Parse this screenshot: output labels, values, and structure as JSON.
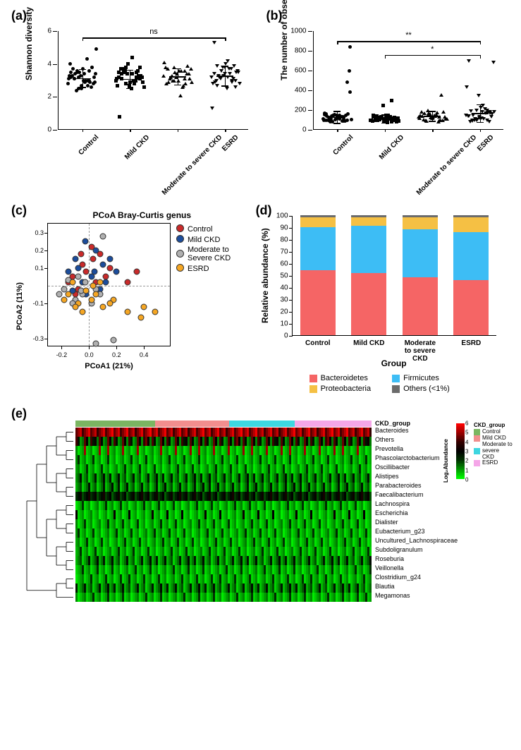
{
  "panel_labels": {
    "a": "(a)",
    "b": "(b)",
    "c": "(c)",
    "d": "(d)",
    "e": "(e)"
  },
  "groups": [
    "Control",
    "Mild CKD",
    "Moderate to severe CKD",
    "ESRD"
  ],
  "shannon": {
    "type": "strip-scatter",
    "ylabel": "Shannon diversity",
    "ylim": [
      0,
      6
    ],
    "ytick_step": 2,
    "sig_label": "ns",
    "sig_bars": [
      {
        "from": 0,
        "to": 3,
        "y": 5.6,
        "label": "ns"
      }
    ],
    "markers": [
      "circle",
      "square",
      "triangle",
      "invtriangle"
    ],
    "means": [
      3.15,
      3.1,
      3.25,
      3.3
    ],
    "sds": [
      0.55,
      0.55,
      0.5,
      0.6
    ],
    "points": [
      [
        2.8,
        3.2,
        3.0,
        3.5,
        2.5,
        3.8,
        3.1,
        2.9,
        3.4,
        3.6,
        2.7,
        4.0,
        3.3,
        2.6,
        3.7,
        3.0,
        3.2,
        2.4,
        4.3,
        3.1,
        3.5,
        2.9,
        3.3,
        3.7,
        2.8,
        3.4,
        3.0,
        4.9,
        2.5,
        3.6,
        3.2,
        2.7,
        3.8,
        3.1,
        3.4,
        2.9,
        3.5,
        3.0,
        3.3
      ],
      [
        3.0,
        2.8,
        3.5,
        3.2,
        2.6,
        3.8,
        3.1,
        3.4,
        2.9,
        3.6,
        3.0,
        2.7,
        4.0,
        3.3,
        3.7,
        2.5,
        3.2,
        3.5,
        2.8,
        3.1,
        3.4,
        3.6,
        0.8,
        2.9,
        3.3,
        3.7,
        3.0,
        2.6,
        3.8,
        3.2,
        3.5,
        2.7,
        3.1,
        3.4,
        4.4
      ],
      [
        3.3,
        3.0,
        3.6,
        2.8,
        3.4,
        3.9,
        3.1,
        2.1,
        3.7,
        3.0,
        2.7,
        3.8,
        3.2,
        3.4,
        2.9,
        3.6,
        3.1,
        3.3,
        2.6,
        4.1,
        3.5,
        2.8,
        3.7,
        3.0,
        3.4,
        3.2,
        3.6,
        2.9,
        3.8,
        3.1
      ],
      [
        3.2,
        3.6,
        2.9,
        3.4,
        3.8,
        3.0,
        2.7,
        4.2,
        3.5,
        3.1,
        3.7,
        2.8,
        3.3,
        3.9,
        3.0,
        2.5,
        3.6,
        3.2,
        3.4,
        1.3,
        3.8,
        3.1,
        2.9,
        4.0,
        3.5,
        3.3,
        3.7,
        2.8,
        3.6,
        3.0,
        5.3,
        3.4,
        2.6,
        3.9,
        3.2
      ]
    ]
  },
  "otus": {
    "type": "strip-scatter",
    "ylabel": "The number of observed OTUs",
    "ylim": [
      0,
      1000
    ],
    "ytick_step": 200,
    "sig_bars": [
      {
        "from": 0,
        "to": 3,
        "y": 900,
        "label": "**"
      },
      {
        "from": 1,
        "to": 3,
        "y": 760,
        "label": "*"
      }
    ],
    "markers": [
      "circle",
      "square",
      "triangle",
      "invtriangle"
    ],
    "means": [
      130,
      115,
      140,
      170
    ],
    "sds": [
      60,
      40,
      50,
      90
    ],
    "points": [
      [
        110,
        140,
        90,
        160,
        120,
        480,
        100,
        150,
        840,
        80,
        130,
        170,
        105,
        145,
        95,
        125,
        600,
        110,
        135,
        100,
        155,
        90,
        140,
        120,
        160,
        85,
        130,
        105,
        150,
        115,
        95,
        145,
        100,
        125,
        110,
        380,
        140,
        90,
        155
      ],
      [
        100,
        130,
        85,
        150,
        110,
        95,
        140,
        75,
        120,
        105,
        135,
        90,
        250,
        115,
        100,
        145,
        80,
        125,
        110,
        95,
        130,
        105,
        140,
        85,
        120,
        100,
        150,
        90,
        115,
        295,
        135,
        80,
        125,
        105,
        110
      ],
      [
        130,
        160,
        100,
        180,
        120,
        95,
        170,
        140,
        110,
        200,
        85,
        150,
        125,
        355,
        105,
        145,
        130,
        90,
        175,
        115,
        160,
        100,
        140,
        125,
        185,
        95,
        155,
        110,
        170,
        130
      ],
      [
        150,
        200,
        100,
        700,
        130,
        180,
        90,
        250,
        680,
        110,
        170,
        140,
        350,
        80,
        190,
        120,
        160,
        95,
        210,
        430,
        105,
        175,
        85,
        225,
        130,
        150,
        110,
        180,
        95,
        200,
        140,
        120,
        165,
        100,
        185
      ]
    ]
  },
  "pcoa": {
    "title": "PCoA Bray-Curtis genus",
    "xlabel": "PCoA1 (21%)",
    "ylabel": "PCoA2 (11%)",
    "xlim": [
      -0.3,
      0.6
    ],
    "ylim": [
      -0.35,
      0.35
    ],
    "xticks": [
      -0.2,
      0.0,
      0.2,
      0.4
    ],
    "yticks": [
      -0.3,
      -0.1,
      0.1,
      0.2,
      0.3
    ],
    "grid_x": 0.0,
    "grid_y": 0.0,
    "legend": [
      {
        "label": "Control",
        "color": "#c92a2a"
      },
      {
        "label": "Mild CKD",
        "color": "#1c4d9c"
      },
      {
        "label": "Moderate to Severe CKD",
        "color": "#b0b0b0"
      },
      {
        "label": "ESRD",
        "color": "#f5a623"
      }
    ],
    "points": [
      {
        "g": 0,
        "x": -0.05,
        "y": 0.12
      },
      {
        "g": 0,
        "x": 0.02,
        "y": 0.22
      },
      {
        "g": 0,
        "x": -0.12,
        "y": 0.05
      },
      {
        "g": 0,
        "x": 0.08,
        "y": 0.18
      },
      {
        "g": 0,
        "x": -0.02,
        "y": 0.08
      },
      {
        "g": 0,
        "x": 0.15,
        "y": 0.1
      },
      {
        "g": 0,
        "x": -0.08,
        "y": -0.02
      },
      {
        "g": 0,
        "x": 0.05,
        "y": 0.02
      },
      {
        "g": 0,
        "x": 0.35,
        "y": 0.08
      },
      {
        "g": 0,
        "x": 0.28,
        "y": 0.02
      },
      {
        "g": 0,
        "x": -0.15,
        "y": 0.02
      },
      {
        "g": 0,
        "x": 0.03,
        "y": 0.15
      },
      {
        "g": 0,
        "x": -0.06,
        "y": 0.18
      },
      {
        "g": 0,
        "x": 0.12,
        "y": 0.05
      },
      {
        "g": 0,
        "x": -0.1,
        "y": -0.05
      },
      {
        "g": 1,
        "x": -0.03,
        "y": 0.25
      },
      {
        "g": 1,
        "x": 0.05,
        "y": 0.2
      },
      {
        "g": 1,
        "x": -0.1,
        "y": 0.15
      },
      {
        "g": 1,
        "x": 0.1,
        "y": 0.12
      },
      {
        "g": 1,
        "x": -0.15,
        "y": 0.08
      },
      {
        "g": 1,
        "x": 0.02,
        "y": 0.05
      },
      {
        "g": 1,
        "x": -0.05,
        "y": 0.02
      },
      {
        "g": 1,
        "x": 0.15,
        "y": 0.15
      },
      {
        "g": 1,
        "x": -0.12,
        "y": -0.03
      },
      {
        "g": 1,
        "x": 0.08,
        "y": -0.02
      },
      {
        "g": 1,
        "x": 0.2,
        "y": 0.08
      },
      {
        "g": 1,
        "x": -0.08,
        "y": 0.1
      },
      {
        "g": 1,
        "x": 0.04,
        "y": 0.08
      },
      {
        "g": 1,
        "x": -0.02,
        "y": -0.05
      },
      {
        "g": 1,
        "x": 0.12,
        "y": 0.02
      },
      {
        "g": 2,
        "x": -0.18,
        "y": -0.02
      },
      {
        "g": 2,
        "x": -0.1,
        "y": -0.08
      },
      {
        "g": 2,
        "x": -0.05,
        "y": -0.05
      },
      {
        "g": 2,
        "x": 0.02,
        "y": -0.1
      },
      {
        "g": 2,
        "x": -0.15,
        "y": 0.03
      },
      {
        "g": 2,
        "x": 0.08,
        "y": -0.05
      },
      {
        "g": 2,
        "x": -0.22,
        "y": -0.05
      },
      {
        "g": 2,
        "x": -0.08,
        "y": 0.05
      },
      {
        "g": 2,
        "x": 0.05,
        "y": -0.02
      },
      {
        "g": 2,
        "x": -0.12,
        "y": -0.1
      },
      {
        "g": 2,
        "x": 0.1,
        "y": 0.28
      },
      {
        "g": 2,
        "x": -0.03,
        "y": 0.02
      },
      {
        "g": 2,
        "x": 0.18,
        "y": -0.31
      },
      {
        "g": 2,
        "x": 0.05,
        "y": -0.33
      },
      {
        "g": 2,
        "x": -0.06,
        "y": -0.03
      },
      {
        "g": 3,
        "x": -0.08,
        "y": -0.1
      },
      {
        "g": 3,
        "x": 0.02,
        "y": -0.08
      },
      {
        "g": 3,
        "x": -0.15,
        "y": -0.05
      },
      {
        "g": 3,
        "x": 0.1,
        "y": -0.12
      },
      {
        "g": 3,
        "x": -0.05,
        "y": -0.15
      },
      {
        "g": 3,
        "x": 0.18,
        "y": -0.08
      },
      {
        "g": 3,
        "x": -0.12,
        "y": 0.02
      },
      {
        "g": 3,
        "x": 0.05,
        "y": -0.05
      },
      {
        "g": 3,
        "x": 0.28,
        "y": -0.15
      },
      {
        "g": 3,
        "x": 0.4,
        "y": -0.12
      },
      {
        "g": 3,
        "x": 0.48,
        "y": -0.15
      },
      {
        "g": 3,
        "x": 0.38,
        "y": -0.18
      },
      {
        "g": 3,
        "x": -0.02,
        "y": -0.03
      },
      {
        "g": 3,
        "x": 0.08,
        "y": 0.02
      },
      {
        "g": 3,
        "x": -0.18,
        "y": -0.08
      },
      {
        "g": 3,
        "x": 0.15,
        "y": -0.1
      },
      {
        "g": 3,
        "x": -0.1,
        "y": -0.12
      },
      {
        "g": 3,
        "x": 0.03,
        "y": 0.0
      }
    ]
  },
  "stacked": {
    "type": "stacked-bar",
    "ylabel": "Relative abundance (%)",
    "xlabel": "Group",
    "ylim": [
      0,
      100
    ],
    "ytick_step": 10,
    "categories": [
      "Control",
      "Mild CKD",
      "Moderate to severe CKD",
      "ESRD"
    ],
    "series": [
      {
        "name": "Bacteroidetes",
        "color": "#f56565",
        "values": [
          54,
          52,
          48,
          46
        ]
      },
      {
        "name": "Firmicutes",
        "color": "#3dbdf5",
        "values": [
          36,
          39,
          40,
          40
        ]
      },
      {
        "name": "Proteobacteria",
        "color": "#f5c044",
        "values": [
          8,
          7,
          10,
          12
        ]
      },
      {
        "name": "Others (<1%)",
        "color": "#6b6b6b",
        "values": [
          2,
          2,
          2,
          2
        ]
      }
    ]
  },
  "heatmap": {
    "group_bar_label": "CKD_group",
    "group_colors": {
      "Control": "#7bb661",
      "Mild CKD": "#f28e8e",
      "Moderate to severe CKD": "#3dd6e0",
      "ESRD": "#f5a6e8"
    },
    "group_fractions": [
      0.27,
      0.25,
      0.22,
      0.26
    ],
    "colorbar": {
      "title": "Log₂Abundance",
      "min": 0,
      "max": 6,
      "ticks": [
        0,
        1,
        2,
        3,
        4,
        5,
        6
      ],
      "stops": [
        {
          "v": 0,
          "c": "#00ff00"
        },
        {
          "v": 2,
          "c": "#003300"
        },
        {
          "v": 3,
          "c": "#000000"
        },
        {
          "v": 4,
          "c": "#330000"
        },
        {
          "v": 6,
          "c": "#ff0000"
        }
      ]
    },
    "n_samples": 140,
    "rows": [
      {
        "name": "Bacteroides",
        "profile": "high"
      },
      {
        "name": "Others",
        "profile": "mixed"
      },
      {
        "name": "Prevotella",
        "profile": "red-sparse"
      },
      {
        "name": "Phascolarctobacterium",
        "profile": "low"
      },
      {
        "name": "Oscillibacter",
        "profile": "low"
      },
      {
        "name": "Alistipes",
        "profile": "low-mid"
      },
      {
        "name": "Parabacteroides",
        "profile": "low-mid"
      },
      {
        "name": "Faecalibacterium",
        "profile": "mid"
      },
      {
        "name": "Lachnospira",
        "profile": "low"
      },
      {
        "name": "Escherichia",
        "profile": "green-sparse"
      },
      {
        "name": "Dialister",
        "profile": "low"
      },
      {
        "name": "Eubacterium_g23",
        "profile": "low"
      },
      {
        "name": "Uncultured_Lachnospiraceae",
        "profile": "low"
      },
      {
        "name": "Subdoligranulum",
        "profile": "low"
      },
      {
        "name": "Roseburia",
        "profile": "low-mid"
      },
      {
        "name": "Veillonella",
        "profile": "low"
      },
      {
        "name": "Clostridium_g24",
        "profile": "low"
      },
      {
        "name": "Blautia",
        "profile": "low-mid"
      },
      {
        "name": "Megamonas",
        "profile": "low"
      }
    ],
    "group_legend_title": "CKD_group"
  }
}
